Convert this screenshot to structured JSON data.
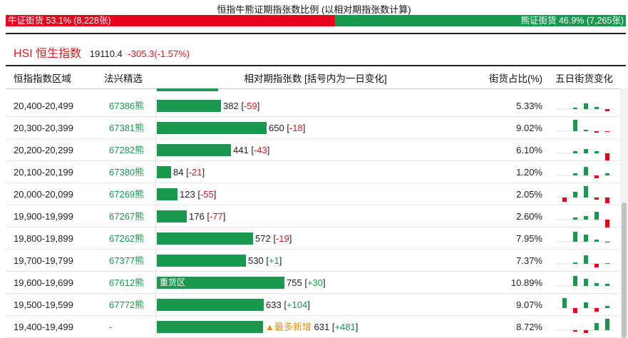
{
  "header": {
    "title": "恒指牛熊证期指张数比例 (以相对期指张数计算)",
    "bull_label": "牛证街货 53.1% (8,228张)",
    "bear_label": "熊证街货 46.9% (7,265张)",
    "bull_ratio": 0.531
  },
  "index": {
    "name": "HSI 恒生指数",
    "price": "19110.4",
    "change": "-305.3(-1.57%)"
  },
  "table": {
    "columns": [
      "恒指指数区域",
      "法兴精选",
      "相对期指张数 [括号内为一日变化]",
      "街货占比(%)",
      "五日街货变化"
    ],
    "rows": [
      {
        "range": "20,400-20,499",
        "code": "67386熊",
        "contracts": 382,
        "count": "382",
        "change": "-59",
        "pct": "5.33%",
        "tag": "",
        "spark": [
          0,
          2,
          8,
          3,
          -3
        ]
      },
      {
        "range": "20,300-20,399",
        "code": "67381熊",
        "contracts": 650,
        "count": "650",
        "change": "-18",
        "pct": "9.02%",
        "tag": "",
        "spark": [
          0,
          16,
          2,
          -2,
          -1
        ]
      },
      {
        "range": "20,200-20,299",
        "code": "67282熊",
        "contracts": 441,
        "count": "441",
        "change": "-43",
        "pct": "6.10%",
        "tag": "",
        "spark": [
          0,
          3,
          6,
          3,
          -10
        ]
      },
      {
        "range": "20,100-20,199",
        "code": "67380熊",
        "contracts": 84,
        "count": "84",
        "change": "-21",
        "pct": "1.20%",
        "tag": "",
        "spark": [
          0,
          3,
          12,
          -4,
          3
        ]
      },
      {
        "range": "20,000-20,099",
        "code": "67269熊",
        "contracts": 123,
        "count": "123",
        "change": "-55",
        "pct": "2.05%",
        "tag": "",
        "spark": [
          -6,
          8,
          16,
          -3,
          -8
        ]
      },
      {
        "range": "19,900-19,999",
        "code": "67267熊",
        "contracts": 176,
        "count": "176",
        "change": "-77",
        "pct": "2.60%",
        "tag": "",
        "spark": [
          0,
          3,
          5,
          11,
          -12
        ]
      },
      {
        "range": "19,800-19,899",
        "code": "67262熊",
        "contracts": 572,
        "count": "572",
        "change": "-19",
        "pct": "7.95%",
        "tag": "",
        "spark": [
          0,
          14,
          10,
          3,
          -1
        ]
      },
      {
        "range": "19,700-19,799",
        "code": "67377熊",
        "contracts": 530,
        "count": "530",
        "change": "+1",
        "pct": "7.37%",
        "tag": "",
        "spark": [
          0,
          2,
          12,
          -5,
          1
        ]
      },
      {
        "range": "19,600-19,699",
        "code": "67612熊",
        "contracts": 755,
        "count": "755",
        "change": "+30",
        "pct": "10.89%",
        "tag": "重货区",
        "spark": [
          0,
          14,
          10,
          4,
          3
        ]
      },
      {
        "range": "19,500-19,599",
        "code": "67772熊",
        "contracts": 633,
        "count": "633",
        "change": "+104",
        "pct": "9.07%",
        "tag": "",
        "spark": [
          14,
          -7,
          8,
          -5,
          3
        ]
      },
      {
        "range": "19,400-19,499",
        "code": "-",
        "contracts": 631,
        "count": "631",
        "change": "+481",
        "pct": "8.72%",
        "tag": "▲最多新增",
        "spark": [
          0,
          -2,
          -4,
          10,
          16
        ]
      }
    ]
  },
  "colors": {
    "bull": "#e8001c",
    "bear": "#1a9850",
    "negative": "#d7191c"
  }
}
